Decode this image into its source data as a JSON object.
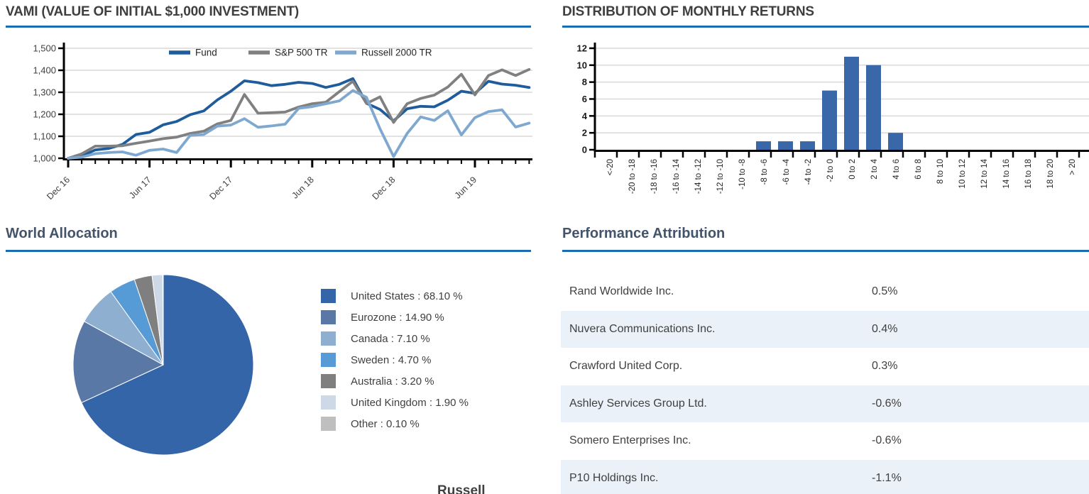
{
  "panels": {
    "vami": {
      "title": "VAMI (VALUE OF INITIAL $1,000 INVESTMENT)"
    },
    "distribution": {
      "title": "DISTRIBUTION OF MONTHLY RETURNS"
    },
    "world_allocation": {
      "title": "World Allocation"
    },
    "performance_attribution": {
      "title": "Performance Attribution"
    }
  },
  "partial_bottom_text": "Russell",
  "colors": {
    "accent_rule": "#1B6CB0",
    "title_upper": "#3F3F3F",
    "title_lower": "#44546A",
    "grid": "#D9D9D9",
    "axis": "#000000",
    "fund": "#1E5C9C",
    "sp500": "#808080",
    "russell2000": "#7FA8D0",
    "bar": "#3A67A8",
    "table_alt_row": "#EAF1F9"
  },
  "chart_data": [
    {
      "type": "line",
      "title": "VAMI (VALUE OF INITIAL $1,000 INVESTMENT)",
      "x": [
        "Dec 16",
        "Jan 17",
        "Feb 17",
        "Mar 17",
        "Apr 17",
        "May 17",
        "Jun 17",
        "Jul 17",
        "Aug 17",
        "Sep 17",
        "Oct 17",
        "Nov 17",
        "Dec 17",
        "Jan 18",
        "Feb 18",
        "Mar 18",
        "Apr 18",
        "May 18",
        "Jun 18",
        "Jul 18",
        "Aug 18",
        "Sep 18",
        "Oct 18",
        "Nov 18",
        "Dec 18",
        "Jan 19",
        "Feb 19",
        "Mar 19",
        "Apr 19",
        "May 19",
        "Jun 19",
        "Jul 19",
        "Aug 19",
        "Sep 19",
        "Oct 19"
      ],
      "x_tick_labels_shown": [
        "Dec 16",
        "Jun 17",
        "Dec 17",
        "Jun 18",
        "Dec 18",
        "Jun 19"
      ],
      "ylim": [
        1000,
        1500
      ],
      "yticks": [
        1000,
        1100,
        1200,
        1300,
        1400,
        1500
      ],
      "ytick_labels": [
        "1,000",
        "1,100",
        "1,200",
        "1,300",
        "1,400",
        "1,500"
      ],
      "grid": true,
      "legend_position": "top",
      "series": [
        {
          "name": "Fund",
          "color": "#1E5C9C",
          "values": [
            1000,
            1010,
            1038,
            1045,
            1063,
            1108,
            1118,
            1152,
            1167,
            1198,
            1215,
            1265,
            1305,
            1352,
            1344,
            1330,
            1336,
            1345,
            1340,
            1322,
            1336,
            1362,
            1250,
            1222,
            1170,
            1225,
            1236,
            1234,
            1264,
            1305,
            1295,
            1350,
            1337,
            1332,
            1322
          ]
        },
        {
          "name": "S&P 500 TR",
          "color": "#808080",
          "values": [
            1000,
            1020,
            1055,
            1055,
            1057,
            1068,
            1078,
            1089,
            1096,
            1113,
            1123,
            1156,
            1172,
            1290,
            1205,
            1207,
            1210,
            1233,
            1248,
            1255,
            1303,
            1350,
            1249,
            1279,
            1163,
            1248,
            1272,
            1287,
            1324,
            1382,
            1288,
            1376,
            1402,
            1376,
            1404
          ]
        },
        {
          "name": "Russell 2000 TR",
          "color": "#7FA8D0",
          "values": [
            1000,
            1005,
            1021,
            1026,
            1029,
            1014,
            1036,
            1042,
            1026,
            1104,
            1108,
            1146,
            1151,
            1180,
            1141,
            1147,
            1155,
            1227,
            1235,
            1248,
            1261,
            1308,
            1277,
            1134,
            1008,
            1113,
            1188,
            1172,
            1216,
            1106,
            1185,
            1212,
            1220,
            1142,
            1160
          ]
        }
      ]
    },
    {
      "type": "bar",
      "title": "DISTRIBUTION OF MONTHLY RETURNS",
      "categories": [
        "<-20",
        "-20 to -18",
        "-18 to -16",
        "-16 to -14",
        "-14 to -12",
        "-12 to -10",
        "-10 to -8",
        "-8 to -6",
        "-6 to -4",
        "-4 to -2",
        "-2 to 0",
        "0 to 2",
        "2 to 4",
        "4 to 6",
        "6 to 8",
        "8 to 10",
        "10 to 12",
        "12 to 14",
        "14 to 16",
        "16 to 18",
        "18 to 20",
        "> 20"
      ],
      "values": [
        0,
        0,
        0,
        0,
        0,
        0,
        0,
        1,
        1,
        1,
        7,
        11,
        10,
        2,
        0,
        0,
        0,
        0,
        0,
        0,
        0,
        0
      ],
      "ylim": [
        0,
        12
      ],
      "yticks": [
        0,
        2,
        4,
        6,
        8,
        10,
        12
      ],
      "bar_color": "#3A67A8",
      "grid": true
    },
    {
      "type": "pie",
      "title": "World Allocation",
      "start_angle": "top",
      "direction": "clockwise",
      "slices": [
        {
          "label": "United States",
          "value": 68.1,
          "color": "#3465A8",
          "legend_label": "United States : 68.10 %"
        },
        {
          "label": "Eurozone",
          "value": 14.9,
          "color": "#5A78A6",
          "legend_label": "Eurozone : 14.90 %"
        },
        {
          "label": "Canada",
          "value": 7.1,
          "color": "#8FAFD0",
          "legend_label": "Canada : 7.10 %"
        },
        {
          "label": "Sweden",
          "value": 4.7,
          "color": "#569AD6",
          "legend_label": "Sweden : 4.70 %"
        },
        {
          "label": "Australia",
          "value": 3.2,
          "color": "#7F7F7F",
          "legend_label": "Australia : 3.20 %"
        },
        {
          "label": "United Kingdom",
          "value": 1.9,
          "color": "#CDD9E6",
          "legend_label": "United Kingdom : 1.90 %"
        },
        {
          "label": "Other",
          "value": 0.1,
          "color": "#BFBFBF",
          "legend_label": "Other : 0.10 %"
        }
      ]
    },
    {
      "type": "table",
      "title": "Performance Attribution",
      "rows": [
        {
          "name": "Rand Worldwide Inc.",
          "value": "0.5%"
        },
        {
          "name": "Nuvera Communications Inc.",
          "value": "0.4%"
        },
        {
          "name": "Crawford United Corp.",
          "value": "0.3%"
        },
        {
          "name": "Ashley Services Group Ltd.",
          "value": "-0.6%"
        },
        {
          "name": "Somero Enterprises Inc.",
          "value": "-0.6%"
        },
        {
          "name": "P10 Holdings Inc.",
          "value": "-1.1%"
        }
      ]
    }
  ]
}
